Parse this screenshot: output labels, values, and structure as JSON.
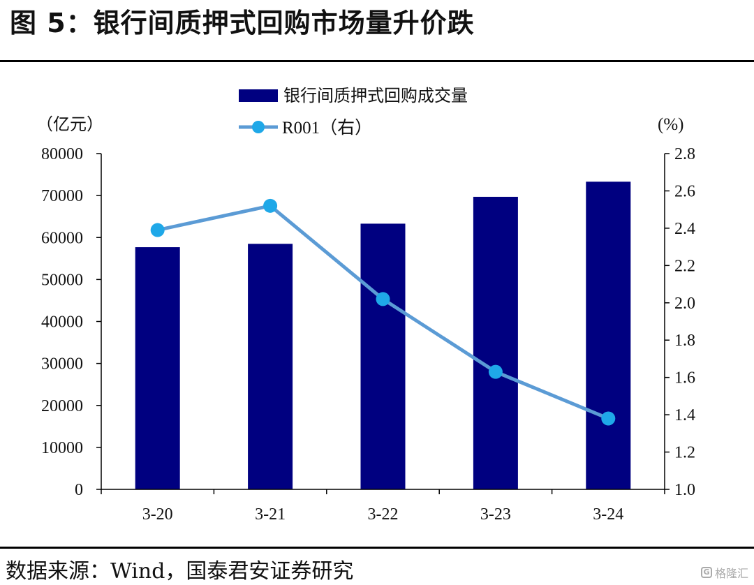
{
  "header": {
    "title": "图 5：银行间质押式回购市场量升价跌"
  },
  "footer": {
    "source": "数据来源：Wind，国泰君安证券研究",
    "watermark": "格隆汇",
    "watermark_logo": "G"
  },
  "chart_data": {
    "type": "bar",
    "categories": [
      "3-20",
      "3-21",
      "3-22",
      "3-23",
      "3-24"
    ],
    "series": [
      {
        "name": "银行间质押式回购成交量",
        "type": "bar",
        "axis": "left",
        "color": "#000080",
        "values": [
          57700,
          58500,
          63300,
          69700,
          73300
        ]
      },
      {
        "name": "R001（右）",
        "type": "line",
        "axis": "right",
        "color": "#5b9bd5",
        "marker_color": "#1fa8e8",
        "values": [
          2.39,
          2.52,
          2.02,
          1.63,
          1.38
        ]
      }
    ],
    "left_axis": {
      "label": "（亿元）",
      "min": 0,
      "max": 80000,
      "step": 10000,
      "ticks": [
        "0",
        "10000",
        "20000",
        "30000",
        "40000",
        "50000",
        "60000",
        "70000",
        "80000"
      ]
    },
    "right_axis": {
      "label": "(%)",
      "min": 1.0,
      "max": 2.8,
      "step": 0.2,
      "ticks": [
        "1.0",
        "1.2",
        "1.4",
        "1.6",
        "1.8",
        "2.0",
        "2.2",
        "2.4",
        "2.6",
        "2.8"
      ]
    },
    "legend_position": "top-center",
    "grid": false
  }
}
